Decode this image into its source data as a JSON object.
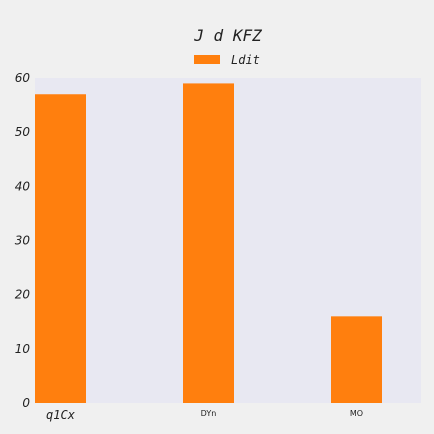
{
  "chart_data": {
    "type": "bar",
    "title": "J d KFZ",
    "categories": [
      "q1Cx",
      "DYn",
      "MO"
    ],
    "series": [
      {
        "name": "Ldit",
        "values": [
          57,
          59,
          16
        ]
      }
    ],
    "ylim": [
      0,
      60
    ],
    "yticks": [
      0,
      10,
      20,
      30,
      40,
      50,
      60
    ],
    "xlabel": "",
    "ylabel": "",
    "grid": false,
    "legend_position": "top-center",
    "colors": {
      "bar": "#ff7f0e",
      "plot_background": "#e8e8f2",
      "figure_background": "#f0f0f0"
    }
  }
}
